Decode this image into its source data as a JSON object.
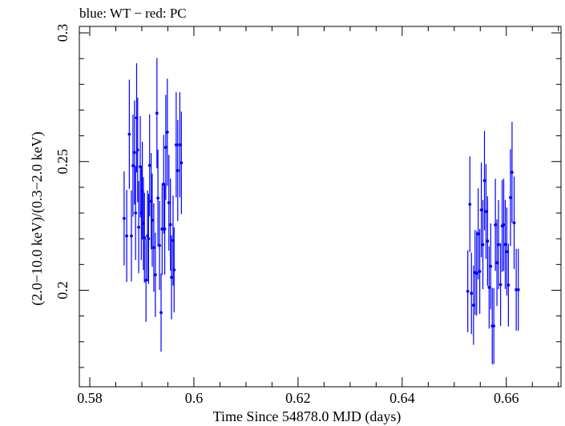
{
  "chart_data": {
    "type": "scatter",
    "title": "blue: WT − red: PC",
    "xlabel": "Time Since 54878.0 MJD (days)",
    "ylabel": "(2.0−10.0 keV)/(0.3−2.0 keV)",
    "xlim": [
      0.578,
      0.6705
    ],
    "ylim": [
      0.1625,
      0.3025
    ],
    "x_ticks": [
      0.58,
      0.6,
      0.62,
      0.64,
      0.66
    ],
    "x_tick_labels": [
      "0.58",
      "0.6",
      "0.62",
      "0.64",
      "0.66"
    ],
    "y_ticks": [
      0.2,
      0.25,
      0.3
    ],
    "y_tick_labels": [
      "0.2",
      "0.25",
      "0.3"
    ],
    "grid": false,
    "series": [
      {
        "name": "WT",
        "color": "#0000ff",
        "points": [
          [
            0.5866,
            0.2279,
            0.0183
          ],
          [
            0.5871,
            0.2211,
            0.0179
          ],
          [
            0.5876,
            0.2606,
            0.0212
          ],
          [
            0.588,
            0.2211,
            0.0177
          ],
          [
            0.5883,
            0.2484,
            0.0198
          ],
          [
            0.5886,
            0.2535,
            0.0202
          ],
          [
            0.5888,
            0.23,
            0.0183
          ],
          [
            0.589,
            0.267,
            0.0212
          ],
          [
            0.5892,
            0.2545,
            0.0203
          ],
          [
            0.5894,
            0.2245,
            0.0179
          ],
          [
            0.5897,
            0.248,
            0.0197
          ],
          [
            0.5899,
            0.23,
            0.0183
          ],
          [
            0.5901,
            0.2387,
            0.019
          ],
          [
            0.5903,
            0.2259,
            0.018
          ],
          [
            0.5905,
            0.2204,
            0.0175
          ],
          [
            0.5908,
            0.2039,
            0.0162
          ],
          [
            0.5911,
            0.2211,
            0.0176
          ],
          [
            0.5913,
            0.22,
            0.0175
          ],
          [
            0.5915,
            0.2485,
            0.0198
          ],
          [
            0.5918,
            0.2346,
            0.0187
          ],
          [
            0.592,
            0.2272,
            0.0181
          ],
          [
            0.5923,
            0.2166,
            0.0172
          ],
          [
            0.5926,
            0.206,
            0.0164
          ],
          [
            0.5929,
            0.2688,
            0.0214
          ],
          [
            0.5931,
            0.2358,
            0.0188
          ],
          [
            0.5934,
            0.2174,
            0.0173
          ],
          [
            0.5937,
            0.1913,
            0.0152
          ],
          [
            0.5939,
            0.2238,
            0.0178
          ],
          [
            0.5942,
            0.2412,
            0.0192
          ],
          [
            0.5944,
            0.2238,
            0.0178
          ],
          [
            0.5946,
            0.2555,
            0.0204
          ],
          [
            0.5949,
            0.2614,
            0.0208
          ],
          [
            0.5952,
            0.234,
            0.0186
          ],
          [
            0.5955,
            0.2255,
            0.0179
          ],
          [
            0.5957,
            0.205,
            0.0163
          ],
          [
            0.596,
            0.2193,
            0.0175
          ],
          [
            0.5962,
            0.2079,
            0.0165
          ],
          [
            0.5966,
            0.2565,
            0.0204
          ],
          [
            0.5969,
            0.2465,
            0.0196
          ],
          [
            0.5973,
            0.2565,
            0.0204
          ],
          [
            0.5976,
            0.2495,
            0.0199
          ],
          [
            0.6526,
            0.1996,
            0.0159
          ],
          [
            0.653,
            0.2334,
            0.0186
          ],
          [
            0.6533,
            0.1988,
            0.0158
          ],
          [
            0.6537,
            0.1942,
            0.0154
          ],
          [
            0.654,
            0.2069,
            0.0165
          ],
          [
            0.6543,
            0.2066,
            0.0164
          ],
          [
            0.6546,
            0.2219,
            0.0177
          ],
          [
            0.6549,
            0.2073,
            0.0165
          ],
          [
            0.6552,
            0.2312,
            0.0184
          ],
          [
            0.6555,
            0.2177,
            0.0173
          ],
          [
            0.6558,
            0.2426,
            0.0193
          ],
          [
            0.6561,
            0.2306,
            0.0184
          ],
          [
            0.6564,
            0.2191,
            0.0174
          ],
          [
            0.6567,
            0.2011,
            0.016
          ],
          [
            0.657,
            0.2093,
            0.0167
          ],
          [
            0.6573,
            0.1861,
            0.0148
          ],
          [
            0.6576,
            0.1861,
            0.0148
          ],
          [
            0.6579,
            0.2254,
            0.0179
          ],
          [
            0.6582,
            0.2107,
            0.0168
          ],
          [
            0.6585,
            0.2177,
            0.0173
          ],
          [
            0.6589,
            0.2022,
            0.0161
          ],
          [
            0.6592,
            0.225,
            0.0179
          ],
          [
            0.6595,
            0.2254,
            0.0179
          ],
          [
            0.6598,
            0.2178,
            0.0173
          ],
          [
            0.6601,
            0.215,
            0.0171
          ],
          [
            0.6604,
            0.202,
            0.0161
          ],
          [
            0.6608,
            0.236,
            0.0188
          ],
          [
            0.6611,
            0.2458,
            0.0196
          ],
          [
            0.6615,
            0.2262,
            0.018
          ],
          [
            0.6619,
            0.2002,
            0.0159
          ],
          [
            0.6623,
            0.2002,
            0.0159
          ]
        ]
      }
    ]
  }
}
